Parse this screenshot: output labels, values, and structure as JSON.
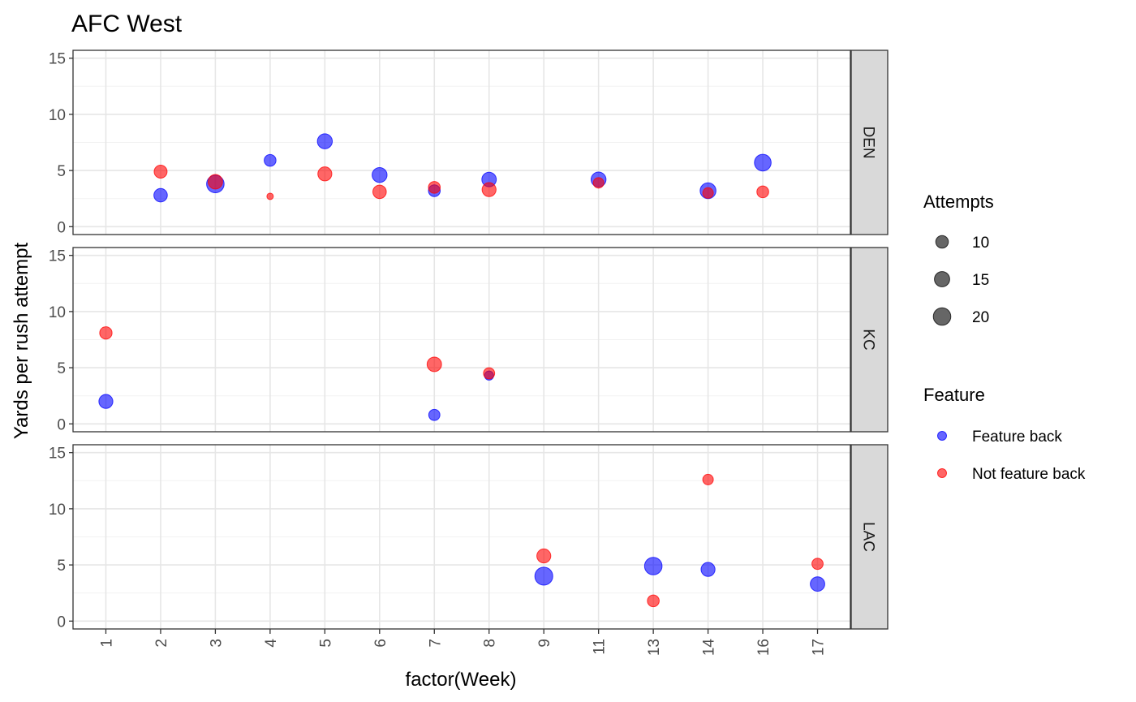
{
  "chart_data": {
    "type": "scatter",
    "title": "AFC West",
    "xlabel": "factor(Week)",
    "ylabel": "Yards per rush attempt",
    "categories": [
      "1",
      "2",
      "3",
      "4",
      "5",
      "6",
      "7",
      "8",
      "9",
      "11",
      "13",
      "14",
      "16",
      "17"
    ],
    "ylim": [
      -0.7,
      15.7
    ],
    "yticks": [
      0,
      5,
      10,
      15
    ],
    "ytick_labels": [
      "0",
      "5",
      "10",
      "15"
    ],
    "grid": true,
    "facets": [
      "DEN",
      "KC",
      "LAC"
    ],
    "colors": {
      "Feature back": "#0000ff",
      "Not feature back": "#ff0000"
    },
    "legend": {
      "position": "right",
      "size_title": "Attempts",
      "size_entries": [
        {
          "label": "10",
          "value": 10
        },
        {
          "label": "15",
          "value": 15
        },
        {
          "label": "20",
          "value": 20
        }
      ],
      "color_title": "Feature",
      "color_entries": [
        "Feature back",
        "Not feature back"
      ]
    },
    "series": [
      {
        "name": "Feature back",
        "points": [
          {
            "facet": "DEN",
            "week": "2",
            "y": 2.8,
            "attempts": 13
          },
          {
            "facet": "DEN",
            "week": "3",
            "y": 3.8,
            "attempts": 22
          },
          {
            "facet": "DEN",
            "week": "4",
            "y": 5.9,
            "attempts": 10
          },
          {
            "facet": "DEN",
            "week": "5",
            "y": 7.6,
            "attempts": 16
          },
          {
            "facet": "DEN",
            "week": "6",
            "y": 4.6,
            "attempts": 16
          },
          {
            "facet": "DEN",
            "week": "7",
            "y": 3.2,
            "attempts": 10
          },
          {
            "facet": "DEN",
            "week": "8",
            "y": 4.2,
            "attempts": 15
          },
          {
            "facet": "DEN",
            "week": "11",
            "y": 4.2,
            "attempts": 16
          },
          {
            "facet": "DEN",
            "week": "14",
            "y": 3.2,
            "attempts": 18
          },
          {
            "facet": "DEN",
            "week": "16",
            "y": 5.7,
            "attempts": 20
          },
          {
            "facet": "KC",
            "week": "1",
            "y": 2.0,
            "attempts": 14
          },
          {
            "facet": "KC",
            "week": "7",
            "y": 0.8,
            "attempts": 9
          },
          {
            "facet": "KC",
            "week": "8",
            "y": 4.3,
            "attempts": 6
          },
          {
            "facet": "LAC",
            "week": "9",
            "y": 4.0,
            "attempts": 23
          },
          {
            "facet": "LAC",
            "week": "13",
            "y": 4.9,
            "attempts": 22
          },
          {
            "facet": "LAC",
            "week": "14",
            "y": 4.6,
            "attempts": 14
          },
          {
            "facet": "LAC",
            "week": "17",
            "y": 3.3,
            "attempts": 15
          }
        ]
      },
      {
        "name": "Not feature back",
        "points": [
          {
            "facet": "DEN",
            "week": "2",
            "y": 4.9,
            "attempts": 12
          },
          {
            "facet": "DEN",
            "week": "3",
            "y": 4.0,
            "attempts": 15
          },
          {
            "facet": "DEN",
            "week": "4",
            "y": 2.7,
            "attempts": 3
          },
          {
            "facet": "DEN",
            "week": "5",
            "y": 4.7,
            "attempts": 14
          },
          {
            "facet": "DEN",
            "week": "6",
            "y": 3.1,
            "attempts": 13
          },
          {
            "facet": "DEN",
            "week": "7",
            "y": 3.5,
            "attempts": 10
          },
          {
            "facet": "DEN",
            "week": "8",
            "y": 3.3,
            "attempts": 14
          },
          {
            "facet": "DEN",
            "week": "11",
            "y": 3.9,
            "attempts": 8
          },
          {
            "facet": "DEN",
            "week": "14",
            "y": 3.0,
            "attempts": 8
          },
          {
            "facet": "DEN",
            "week": "16",
            "y": 3.1,
            "attempts": 10
          },
          {
            "facet": "KC",
            "week": "1",
            "y": 8.1,
            "attempts": 11
          },
          {
            "facet": "KC",
            "week": "7",
            "y": 5.3,
            "attempts": 15
          },
          {
            "facet": "KC",
            "week": "8",
            "y": 4.5,
            "attempts": 9
          },
          {
            "facet": "LAC",
            "week": "9",
            "y": 5.8,
            "attempts": 14
          },
          {
            "facet": "LAC",
            "week": "13",
            "y": 1.8,
            "attempts": 10
          },
          {
            "facet": "LAC",
            "week": "14",
            "y": 12.6,
            "attempts": 8
          },
          {
            "facet": "LAC",
            "week": "17",
            "y": 5.1,
            "attempts": 9
          }
        ]
      }
    ]
  }
}
